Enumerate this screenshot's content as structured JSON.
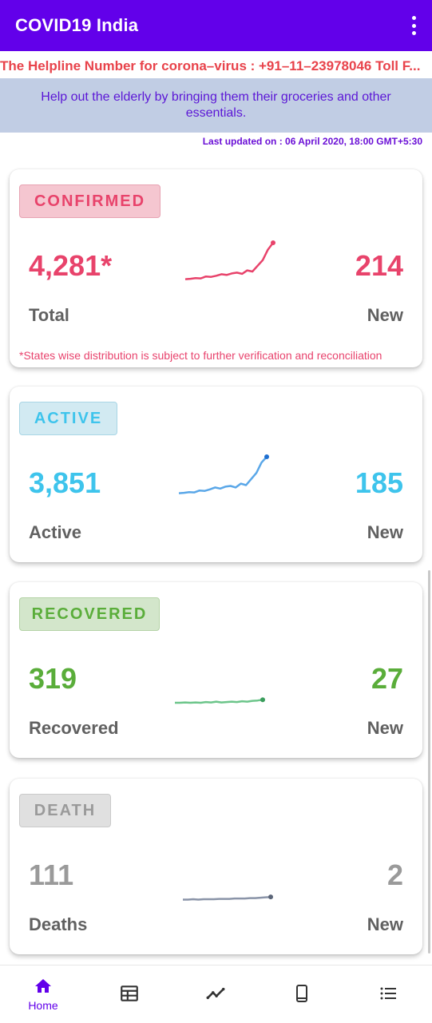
{
  "app": {
    "title": "COVID19 India"
  },
  "helpline": "The Helpline Number for corona–virus : +91–11–23978046 Toll F...",
  "banner": "Help out the elderly by bringing them their groceries and other essentials.",
  "last_updated": "Last updated on : 06 April 2020, 18:00 GMT+5:30",
  "cards": {
    "confirmed": {
      "badge": "CONFIRMED",
      "total": "4,281*",
      "total_label": "Total",
      "new": "214",
      "new_label": "New",
      "note": "*States wise distribution is subject to further verification and reconciliation",
      "color": "#e8436b",
      "badge_bg": "#f5c6d0",
      "badge_border": "#e7a3b3",
      "trend": [
        0.05,
        0.06,
        0.08,
        0.07,
        0.12,
        0.11,
        0.14,
        0.18,
        0.16,
        0.2,
        0.22,
        0.19,
        0.28,
        0.25,
        0.4,
        0.55,
        0.82,
        1.0
      ]
    },
    "active": {
      "badge": "ACTIVE",
      "total": "3,851",
      "total_label": "Active",
      "new": "185",
      "new_label": "New",
      "color": "#3ec4ec",
      "badge_bg": "#d2eaf2",
      "badge_border": "#a9d6e5",
      "line_color": "#5aa7e8",
      "trend": [
        0.05,
        0.06,
        0.08,
        0.07,
        0.12,
        0.11,
        0.15,
        0.2,
        0.17,
        0.22,
        0.24,
        0.2,
        0.3,
        0.26,
        0.42,
        0.58,
        0.85,
        1.0
      ]
    },
    "recovered": {
      "badge": "RECOVERED",
      "total": "319",
      "total_label": "Recovered",
      "new": "27",
      "new_label": "New",
      "color": "#5aad3a",
      "badge_bg": "#d3e6cb",
      "badge_border": "#b4d3a6",
      "line_color": "#6cc58a",
      "trend": [
        0.02,
        0.02,
        0.03,
        0.02,
        0.03,
        0.02,
        0.04,
        0.03,
        0.05,
        0.03,
        0.04,
        0.05,
        0.04,
        0.06,
        0.05,
        0.07,
        0.08,
        0.1
      ]
    },
    "death": {
      "badge": "DEATH",
      "total": "111",
      "total_label": "Deaths",
      "new": "2",
      "new_label": "New",
      "color": "#9a9a9a",
      "badge_bg": "#e0e0e0",
      "badge_border": "#cacaca",
      "line_color": "#8a94a8",
      "trend": [
        0.01,
        0.01,
        0.02,
        0.01,
        0.02,
        0.02,
        0.02,
        0.03,
        0.03,
        0.03,
        0.04,
        0.04,
        0.04,
        0.05,
        0.05,
        0.06,
        0.07,
        0.08
      ]
    }
  },
  "nav": {
    "home": {
      "label": "Home",
      "icon": "home-icon"
    },
    "items": [
      "calendar-table-icon",
      "trend-icon",
      "phone-icon",
      "list-icon"
    ]
  },
  "colors": {
    "brand": "#6200ea",
    "helpline": "#e8434b",
    "banner_bg": "#c1cde4"
  }
}
